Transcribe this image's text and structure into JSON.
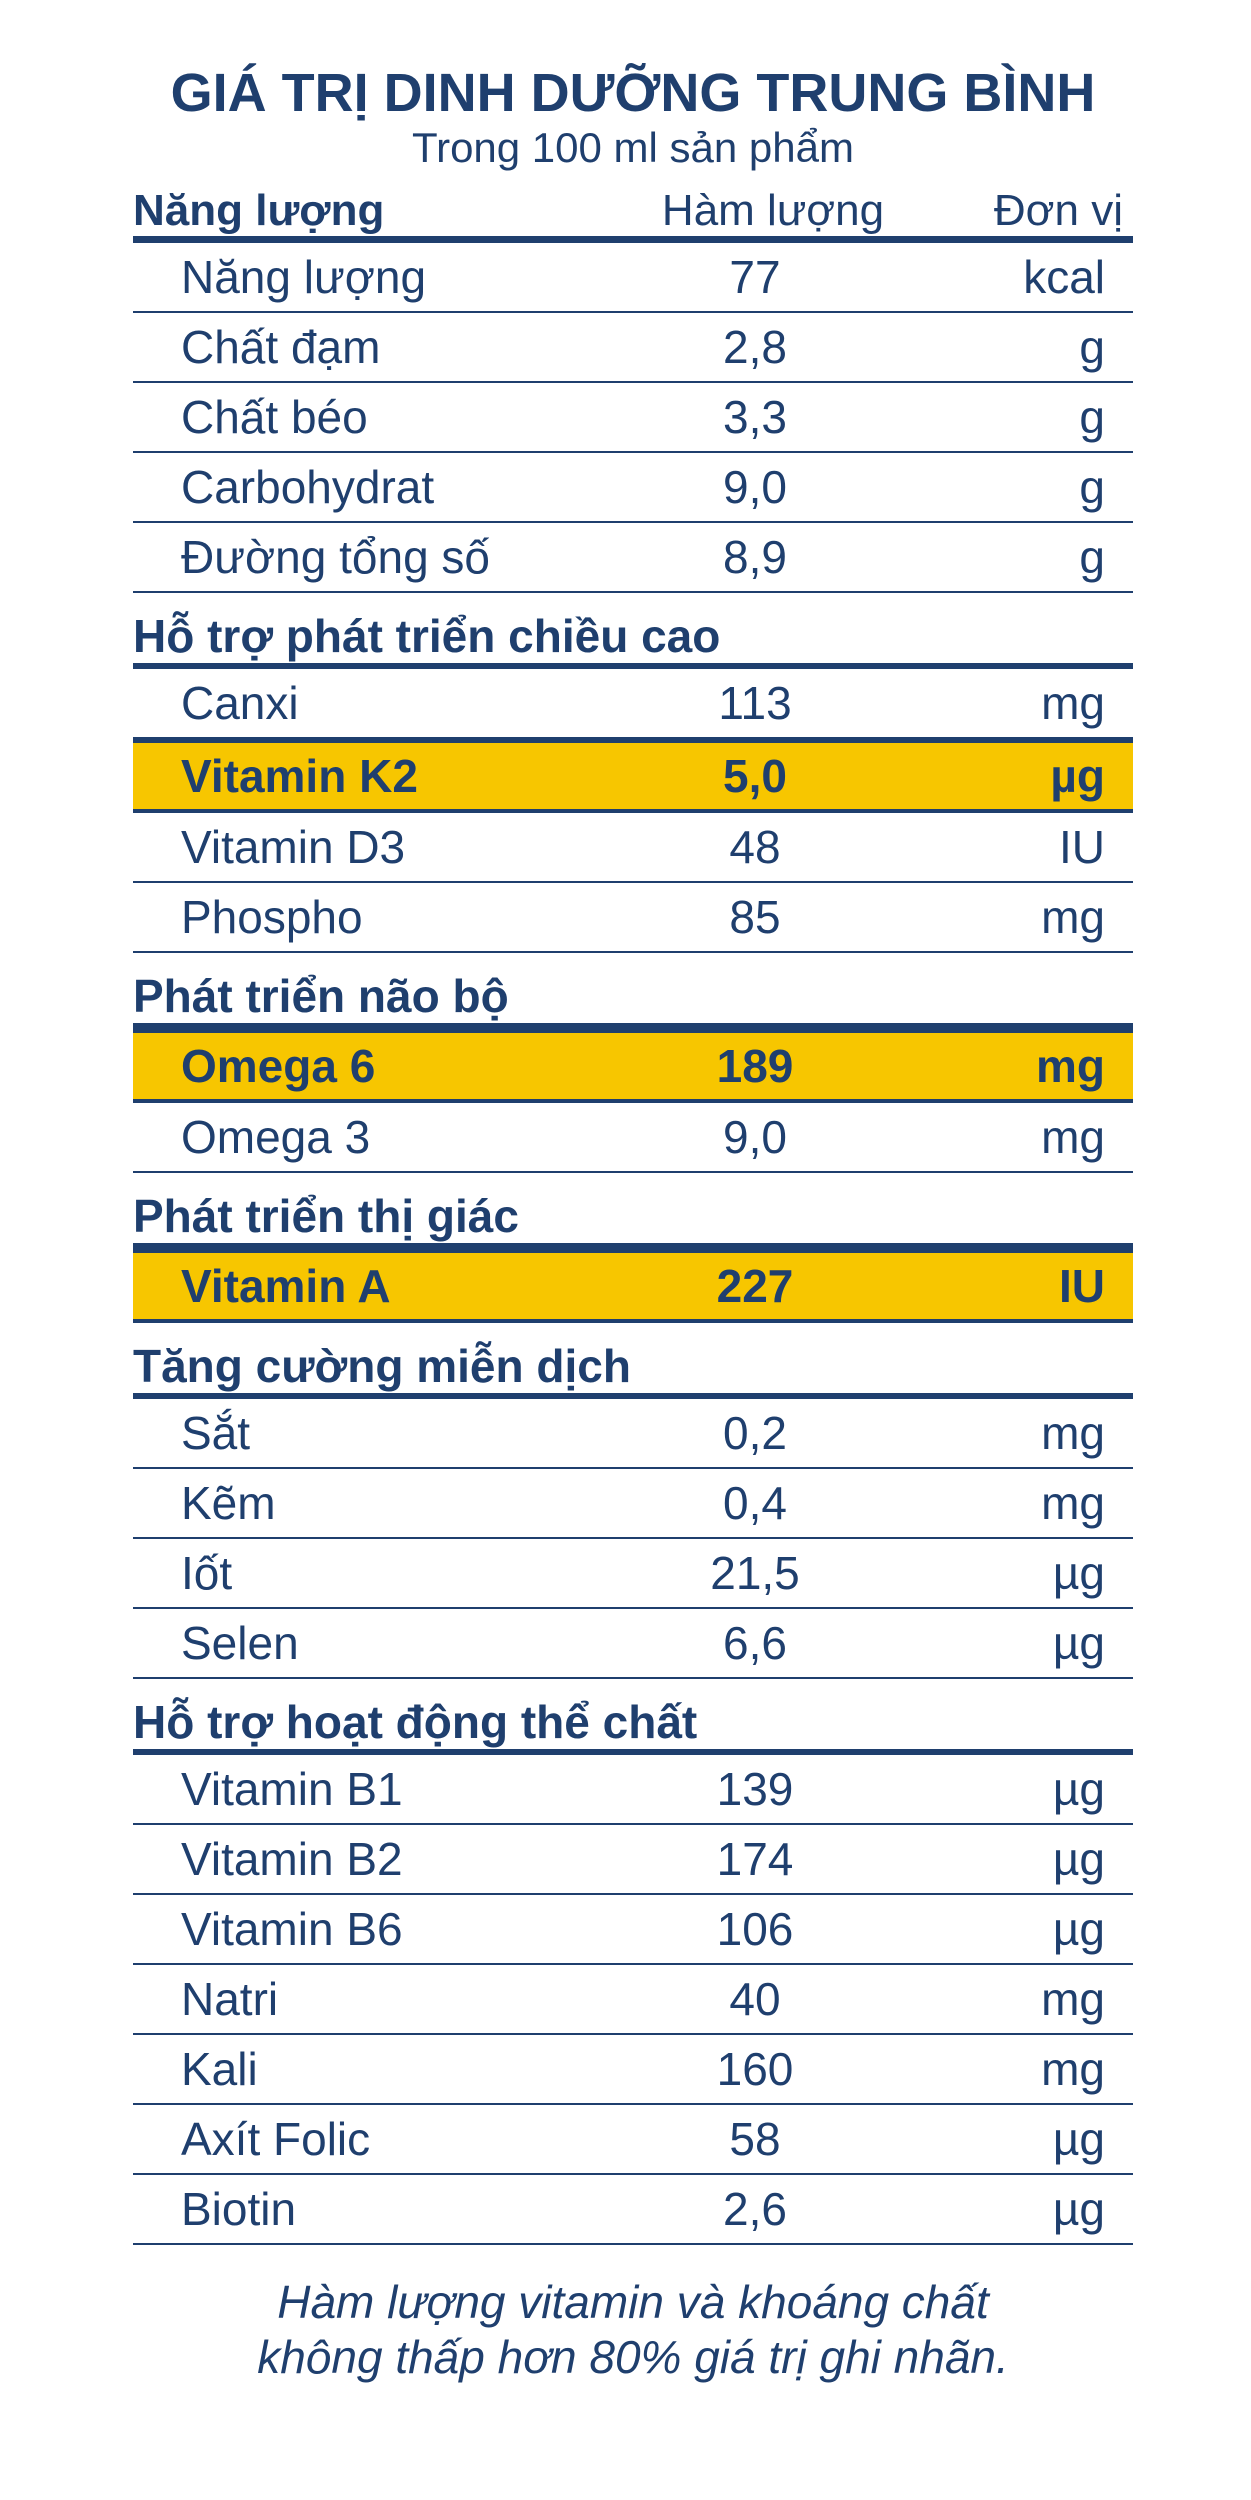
{
  "title": "GIÁ TRỊ DINH DƯỠNG TRUNG BÌNH",
  "subtitle": "Trong 100 ml sản phẩm",
  "columns": {
    "category": "Năng lượng",
    "amount": "Hàm lượng",
    "unit": "Đơn vị"
  },
  "energy": {
    "rows": [
      {
        "name": "Năng lượng",
        "value": "77",
        "unit": "kcal"
      },
      {
        "name": "Chất đạm",
        "value": "2,8",
        "unit": "g"
      },
      {
        "name": "Chất béo",
        "value": "3,3",
        "unit": "g"
      },
      {
        "name": "Carbohydrat",
        "value": "9,0",
        "unit": "g"
      },
      {
        "name": "Đường tổng số",
        "value": "8,9",
        "unit": "g"
      }
    ]
  },
  "height": {
    "title": "Hỗ trợ phát triển chiều cao",
    "rows": [
      {
        "name": "Canxi",
        "value": "113",
        "unit": "mg"
      },
      {
        "name": "Vitamin K2",
        "value": "5,0",
        "unit": "µg"
      },
      {
        "name": "Vitamin D3",
        "value": "48",
        "unit": "IU"
      },
      {
        "name": "Phospho",
        "value": "85",
        "unit": "mg"
      }
    ]
  },
  "brain": {
    "title": "Phát triển não bộ",
    "rows": [
      {
        "name": "Omega 6",
        "value": "189",
        "unit": "mg"
      },
      {
        "name": "Omega 3",
        "value": "9,0",
        "unit": "mg"
      }
    ]
  },
  "vision": {
    "title": "Phát triển thị giác",
    "rows": [
      {
        "name": "Vitamin A",
        "value": "227",
        "unit": "IU"
      }
    ]
  },
  "immunity": {
    "title": "Tăng cường miễn dịch",
    "rows": [
      {
        "name": "Sắt",
        "value": "0,2",
        "unit": "mg"
      },
      {
        "name": "Kẽm",
        "value": "0,4",
        "unit": "mg"
      },
      {
        "name": "Iốt",
        "value": "21,5",
        "unit": "µg"
      },
      {
        "name": "Selen",
        "value": "6,6",
        "unit": "µg"
      }
    ]
  },
  "physical": {
    "title": "Hỗ trợ hoạt động thể chất",
    "rows": [
      {
        "name": "Vitamin B1",
        "value": "139",
        "unit": "µg"
      },
      {
        "name": "Vitamin B2",
        "value": "174",
        "unit": "µg"
      },
      {
        "name": "Vitamin B6",
        "value": "106",
        "unit": "µg"
      },
      {
        "name": "Natri",
        "value": "40",
        "unit": "mg"
      },
      {
        "name": "Kali",
        "value": "160",
        "unit": "mg"
      },
      {
        "name": "Axít Folic",
        "value": "58",
        "unit": "µg"
      },
      {
        "name": "Biotin",
        "value": "2,6",
        "unit": "µg"
      }
    ]
  },
  "note": {
    "line1": "Hàm lượng vitamin và khoáng chất",
    "line2": "không thấp hơn 80% giá trị ghi nhãn."
  },
  "colors": {
    "text": "#1f3f6e",
    "highlight": "#f7c600",
    "background": "#ffffff"
  }
}
